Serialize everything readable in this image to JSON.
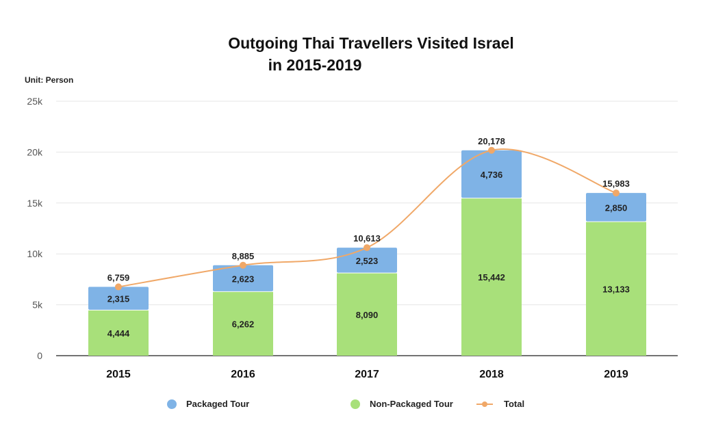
{
  "chart_data": {
    "type": "bar",
    "title": "Outgoing Thai Travellers Visited Israel",
    "subtitle": "in 2015-2019",
    "unit_label": "Unit: Person",
    "categories": [
      "2015",
      "2016",
      "2017",
      "2018",
      "2019"
    ],
    "series": [
      {
        "name": "Non-Packaged Tour",
        "type": "bar",
        "stacked": true,
        "color": "#a8e07a",
        "values": [
          4444,
          6262,
          8090,
          15442,
          13133
        ],
        "labels": [
          "4,444",
          "6,262",
          "8,090",
          "15,442",
          "13,133"
        ]
      },
      {
        "name": "Packaged Tour",
        "type": "bar",
        "stacked": true,
        "color": "#7fb3e6",
        "values": [
          2315,
          2623,
          2523,
          4736,
          2850
        ],
        "labels": [
          "2,315",
          "2,623",
          "2,523",
          "4,736",
          "2,850"
        ]
      },
      {
        "name": "Total",
        "type": "line",
        "color": "#f0a868",
        "values": [
          6759,
          8885,
          10613,
          20178,
          15983
        ],
        "labels": [
          "6,759",
          "8,885",
          "10,613",
          "20,178",
          "15,983"
        ]
      }
    ],
    "ylim": [
      0,
      25000
    ],
    "yticks": [
      0,
      5000,
      10000,
      15000,
      20000,
      25000
    ],
    "ytick_labels": [
      "0",
      "5k",
      "10k",
      "15k",
      "20k",
      "25k"
    ],
    "grid": true,
    "legend": {
      "position": "bottom",
      "items": [
        "Packaged Tour",
        "Non-Packaged Tour",
        "Total"
      ]
    }
  }
}
